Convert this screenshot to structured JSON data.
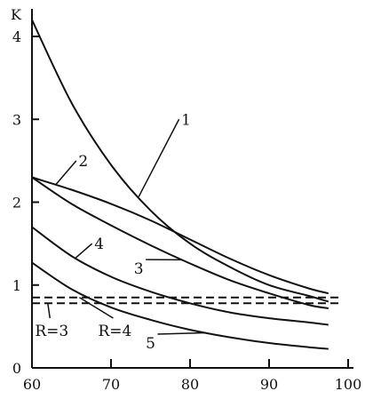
{
  "chart_data": {
    "type": "line",
    "ylabel": "K",
    "xlim": [
      60,
      100
    ],
    "ylim": [
      0,
      4.3
    ],
    "x_ticks": [
      "60",
      "70",
      "80",
      "90",
      "100"
    ],
    "y_ticks": [
      "0",
      "1",
      "2",
      "3",
      "4"
    ],
    "grid": false,
    "legend": "none",
    "series": [
      {
        "name": "1",
        "x": [
          60,
          65,
          70,
          75,
          80,
          85,
          90,
          95,
          97.5
        ],
        "values": [
          4.2,
          3.2,
          2.45,
          1.9,
          1.5,
          1.22,
          1.0,
          0.87,
          0.8
        ]
      },
      {
        "name": "2",
        "x": [
          60,
          65,
          70,
          75,
          80,
          85,
          90,
          95,
          97.5
        ],
        "values": [
          2.3,
          2.15,
          1.98,
          1.78,
          1.55,
          1.32,
          1.12,
          0.96,
          0.9
        ]
      },
      {
        "name": "3",
        "x": [
          60,
          65,
          70,
          75,
          80,
          85,
          90,
          95,
          97.5
        ],
        "values": [
          2.3,
          1.98,
          1.72,
          1.48,
          1.26,
          1.06,
          0.9,
          0.76,
          0.72
        ]
      },
      {
        "name": "4",
        "x": [
          60,
          65,
          70,
          75,
          80,
          85,
          90,
          95,
          97.5
        ],
        "values": [
          1.7,
          1.35,
          1.1,
          0.92,
          0.78,
          0.67,
          0.6,
          0.55,
          0.52
        ]
      },
      {
        "name": "5",
        "x": [
          60,
          65,
          70,
          75,
          80,
          85,
          90,
          95,
          97.5
        ],
        "values": [
          1.27,
          0.95,
          0.73,
          0.58,
          0.46,
          0.37,
          0.3,
          0.25,
          0.23
        ]
      }
    ],
    "reference_lines": [
      {
        "name": "R=3",
        "y": 0.78
      },
      {
        "name": "R=4",
        "y": 0.85
      }
    ],
    "curve_labels": [
      {
        "series": "1",
        "text": "1",
        "at_x": 73.5,
        "text_x": 79.5,
        "text_y": 3.0
      },
      {
        "series": "2",
        "text": "2",
        "at_x": 63.0,
        "text_x": 66.5,
        "text_y": 2.5
      },
      {
        "series": "3",
        "text": "3",
        "at_x": 79.0,
        "text_x": 73.5,
        "text_y": 1.2
      },
      {
        "series": "4",
        "text": "4",
        "at_x": 65.5,
        "text_x": 68.5,
        "text_y": 1.5
      },
      {
        "series": "5",
        "text": "5",
        "at_x": 82.0,
        "text_x": 75.0,
        "text_y": 0.3
      }
    ],
    "reference_labels": [
      {
        "ref": "R=3",
        "text": "R=3",
        "at_x": 62.0,
        "text_x": 62.5,
        "text_y": 0.45
      },
      {
        "ref": "R=4",
        "text": "R=4",
        "at_x": 66.0,
        "text_x": 70.5,
        "text_y": 0.45
      }
    ],
    "colors": {
      "ink": "#111111",
      "background": "#ffffff"
    }
  }
}
